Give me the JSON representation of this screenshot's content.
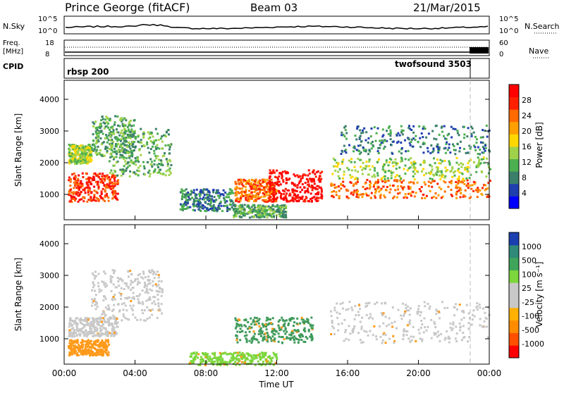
{
  "header": {
    "station": "Prince George (fitACF)",
    "beam": "Beam 03",
    "date": "21/Mar/2015"
  },
  "strips": {
    "nsky": {
      "left_label": "N.Sky",
      "left_ticks": [
        "10^5",
        "10^0"
      ],
      "right_ticks": [
        "10^5",
        "10^0"
      ],
      "right_label": "N.Search"
    },
    "freq": {
      "left_label_top": "Freq.",
      "left_label_bottom": "[MHz]",
      "left_ticks": [
        "18",
        "8"
      ],
      "right_ticks": [
        "60",
        "0"
      ],
      "right_label": "Nave"
    },
    "cpid": {
      "left_label": "CPID",
      "programs": [
        {
          "name": "rbsp 200",
          "start_hour": 0
        },
        {
          "name": "twofsound 3503",
          "start_hour": 22.9
        }
      ]
    }
  },
  "chart_data": [
    {
      "type": "heatmap",
      "name": "power",
      "ylabel": "Slant Range [km]",
      "ylim": [
        200,
        4600
      ],
      "yticks": [
        1000,
        2000,
        3000,
        4000
      ],
      "xlim": [
        0,
        24
      ],
      "colorbar": {
        "label": "Power [dB]",
        "ticks": [
          "28",
          "24",
          "20",
          "16",
          "12",
          "8",
          "4"
        ],
        "colors": [
          "#0000ff",
          "#1f3fae",
          "#3a7f6a",
          "#4caf50",
          "#9fd24a",
          "#ffd700",
          "#ffa000",
          "#ff6a00",
          "#ff2000",
          "#ff0000"
        ]
      },
      "regions": [
        {
          "t": [
            0.2,
            3.0
          ],
          "r": [
            800,
            1700
          ],
          "level": 8,
          "note": "early band"
        },
        {
          "t": [
            0.2,
            1.5
          ],
          "r": [
            2000,
            2600
          ],
          "level": 4
        },
        {
          "t": [
            1.5,
            4.0
          ],
          "r": [
            2200,
            3500
          ],
          "level": 3
        },
        {
          "t": [
            2.5,
            6.0
          ],
          "r": [
            1600,
            3100
          ],
          "level": 3
        },
        {
          "t": [
            6.5,
            9.5
          ],
          "r": [
            500,
            1200
          ],
          "level": 2
        },
        {
          "t": [
            9.5,
            12.5
          ],
          "r": [
            300,
            700
          ],
          "level": 3
        },
        {
          "t": [
            9.6,
            12.0
          ],
          "r": [
            800,
            1500
          ],
          "level": 7
        },
        {
          "t": [
            11.5,
            14.5
          ],
          "r": [
            800,
            1800
          ],
          "level": 9
        },
        {
          "t": [
            15.0,
            24.0
          ],
          "r": [
            900,
            1500
          ],
          "level": 7
        },
        {
          "t": [
            15.0,
            24.0
          ],
          "r": [
            1500,
            2200
          ],
          "level": 4
        },
        {
          "t": [
            15.5,
            24.0
          ],
          "r": [
            2300,
            3200
          ],
          "level": 2
        }
      ]
    },
    {
      "type": "heatmap",
      "name": "velocity",
      "ylabel": "Slant Range [km]",
      "ylim": [
        200,
        4600
      ],
      "yticks": [
        1000,
        2000,
        3000,
        4000
      ],
      "xlim": [
        0,
        24
      ],
      "xticks": [
        "00:00",
        "04:00",
        "08:00",
        "12:00",
        "16:00",
        "20:00",
        "00:00"
      ],
      "xlabel": "Time UT",
      "colorbar": {
        "label": "Velocity [m s⁻¹]",
        "ticks": [
          "1000",
          "500",
          "100",
          "25",
          "-25",
          "-100",
          "-500",
          "-1000"
        ],
        "colors": [
          "#ff0000",
          "#ff5000",
          "#ff8c00",
          "#ffb000",
          "#c8c8c8",
          "#c8c8c8",
          "#7cd63c",
          "#3ea55a",
          "#2f8a7a",
          "#1a3fb0"
        ]
      },
      "regions": [
        {
          "t": [
            0.2,
            3.0
          ],
          "r": [
            1100,
            1700
          ],
          "vel": "grey"
        },
        {
          "t": [
            0.2,
            2.5
          ],
          "r": [
            500,
            1000
          ],
          "vel": "orange"
        },
        {
          "t": [
            1.5,
            5.5
          ],
          "r": [
            1600,
            3200
          ],
          "vel": "grey"
        },
        {
          "t": [
            9.6,
            14.0
          ],
          "r": [
            900,
            1700
          ],
          "vel": "green"
        },
        {
          "t": [
            7.0,
            12.0
          ],
          "r": [
            200,
            600
          ],
          "vel": "lightgreen"
        },
        {
          "t": [
            15.0,
            24.0
          ],
          "r": [
            900,
            2200
          ],
          "vel": "grey"
        }
      ]
    }
  ]
}
